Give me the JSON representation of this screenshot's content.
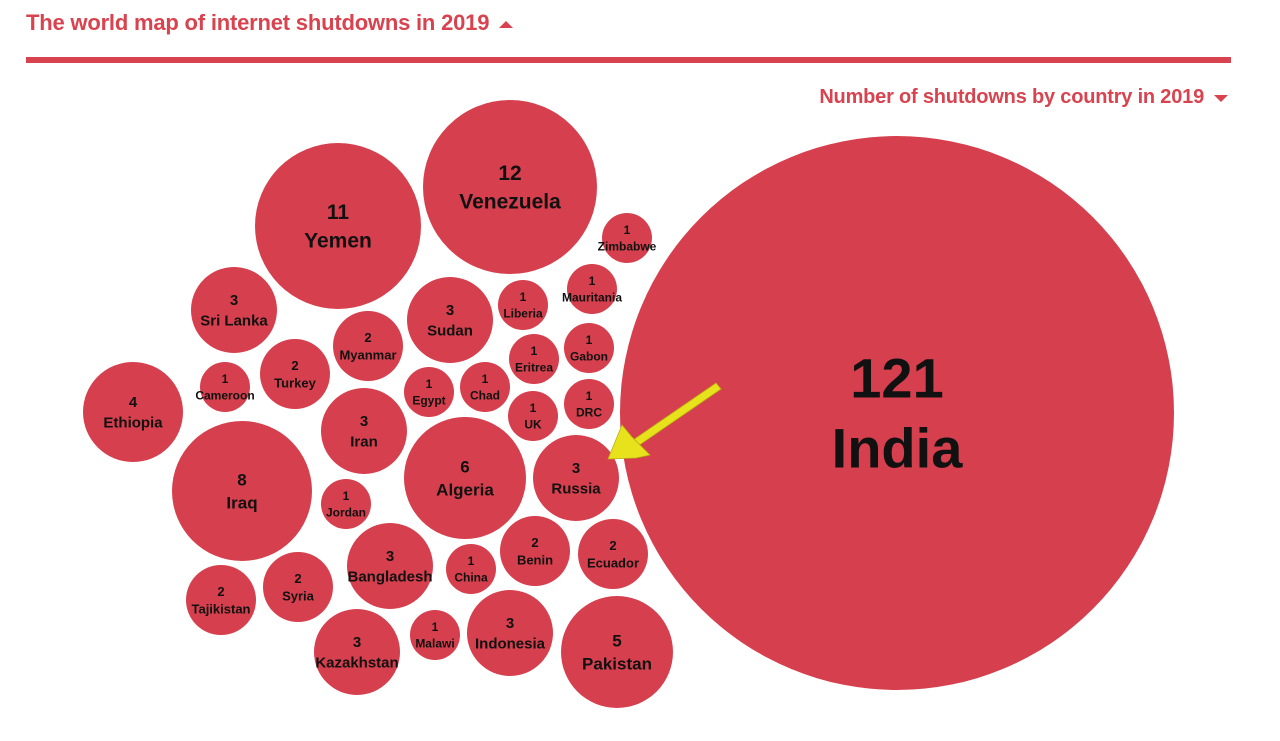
{
  "header": {
    "title": "The world map of internet shutdowns in 2019"
  },
  "subheader": {
    "title": "Number of shutdowns by country in 2019"
  },
  "colors": {
    "accent": "#d9434f",
    "bubble": "#d63f4d",
    "label": "#111111",
    "arrow": "#e8e21c"
  },
  "icons": {
    "header_toggle": "caret-up-icon",
    "subheader_toggle": "caret-down-icon",
    "annotation": "arrow-icon"
  },
  "chart_data": {
    "type": "bubble",
    "title": "Number of shutdowns by country in 2019",
    "series": [
      {
        "label": "India",
        "value": 121
      },
      {
        "label": "Venezuela",
        "value": 12
      },
      {
        "label": "Yemen",
        "value": 11
      },
      {
        "label": "Iraq",
        "value": 8
      },
      {
        "label": "Algeria",
        "value": 6
      },
      {
        "label": "Pakistan",
        "value": 5
      },
      {
        "label": "Ethiopia",
        "value": 4
      },
      {
        "label": "Sri Lanka",
        "value": 3
      },
      {
        "label": "Sudan",
        "value": 3
      },
      {
        "label": "Iran",
        "value": 3
      },
      {
        "label": "Russia",
        "value": 3
      },
      {
        "label": "Bangladesh",
        "value": 3
      },
      {
        "label": "Indonesia",
        "value": 3
      },
      {
        "label": "Kazakhstan",
        "value": 3
      },
      {
        "label": "Myanmar",
        "value": 2
      },
      {
        "label": "Turkey",
        "value": 2
      },
      {
        "label": "Benin",
        "value": 2
      },
      {
        "label": "Ecuador",
        "value": 2
      },
      {
        "label": "Syria",
        "value": 2
      },
      {
        "label": "Tajikistan",
        "value": 2
      },
      {
        "label": "Zimbabwe",
        "value": 1
      },
      {
        "label": "Mauritania",
        "value": 1
      },
      {
        "label": "Liberia",
        "value": 1
      },
      {
        "label": "Gabon",
        "value": 1
      },
      {
        "label": "Eritrea",
        "value": 1
      },
      {
        "label": "Cameroon",
        "value": 1
      },
      {
        "label": "Egypt",
        "value": 1
      },
      {
        "label": "Chad",
        "value": 1
      },
      {
        "label": "DRC",
        "value": 1
      },
      {
        "label": "UK",
        "value": 1
      },
      {
        "label": "Jordan",
        "value": 1
      },
      {
        "label": "China",
        "value": 1
      },
      {
        "label": "Malawi",
        "value": 1
      }
    ]
  }
}
